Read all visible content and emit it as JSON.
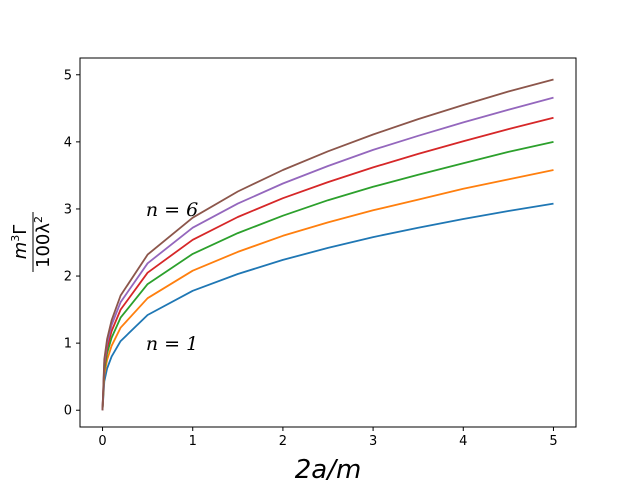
{
  "chart_data": {
    "type": "line",
    "xlabel": "2a/m",
    "ylabel": {
      "numerator_base": "m",
      "numerator_sup": "3",
      "numerator_rest": "Γ",
      "denominator_base": "100λ",
      "denominator_sup": "2"
    },
    "xlim": [
      -0.25,
      5.25
    ],
    "ylim": [
      -0.25,
      5.25
    ],
    "x_ticks": [
      0,
      1,
      2,
      3,
      4,
      5
    ],
    "y_ticks": [
      0,
      1,
      2,
      3,
      4,
      5
    ],
    "grid": false,
    "legend": "none",
    "annotations": [
      {
        "text": "n = 6",
        "x": 0.48,
        "y": 3.0
      },
      {
        "text": "n = 1",
        "x": 0.48,
        "y": 1.0
      }
    ],
    "series": [
      {
        "color": "#1f77b4",
        "x": [
          0,
          0.02,
          0.05,
          0.1,
          0.2,
          0.5,
          1,
          1.5,
          2,
          2.5,
          3,
          3.5,
          4,
          4.5,
          5
        ],
        "y": [
          0,
          0.43,
          0.62,
          0.8,
          1.03,
          1.42,
          1.78,
          2.03,
          2.24,
          2.42,
          2.58,
          2.72,
          2.85,
          2.97,
          3.08
        ]
      },
      {
        "color": "#ff7f0e",
        "x": [
          0,
          0.02,
          0.05,
          0.1,
          0.2,
          0.5,
          1,
          1.5,
          2,
          2.5,
          3,
          3.5,
          4,
          4.5,
          5
        ],
        "y": [
          0,
          0.53,
          0.75,
          0.96,
          1.23,
          1.67,
          2.08,
          2.36,
          2.6,
          2.8,
          2.98,
          3.14,
          3.3,
          3.44,
          3.58
        ]
      },
      {
        "color": "#2ca02c",
        "x": [
          0,
          0.02,
          0.05,
          0.1,
          0.2,
          0.5,
          1,
          1.5,
          2,
          2.5,
          3,
          3.5,
          4,
          4.5,
          5
        ],
        "y": [
          0,
          0.6,
          0.85,
          1.08,
          1.38,
          1.88,
          2.33,
          2.64,
          2.9,
          3.13,
          3.33,
          3.51,
          3.68,
          3.85,
          4.0
        ]
      },
      {
        "color": "#d62728",
        "x": [
          0,
          0.02,
          0.05,
          0.1,
          0.2,
          0.5,
          1,
          1.5,
          2,
          2.5,
          3,
          3.5,
          4,
          4.5,
          5
        ],
        "y": [
          0,
          0.66,
          0.93,
          1.18,
          1.5,
          2.05,
          2.54,
          2.88,
          3.16,
          3.4,
          3.62,
          3.82,
          4.01,
          4.19,
          4.36
        ]
      },
      {
        "color": "#9467bd",
        "x": [
          0,
          0.02,
          0.05,
          0.1,
          0.2,
          0.5,
          1,
          1.5,
          2,
          2.5,
          3,
          3.5,
          4,
          4.5,
          5
        ],
        "y": [
          0,
          0.71,
          1.0,
          1.27,
          1.61,
          2.19,
          2.72,
          3.08,
          3.38,
          3.64,
          3.88,
          4.09,
          4.29,
          4.48,
          4.66
        ]
      },
      {
        "color": "#8c564b",
        "x": [
          0,
          0.02,
          0.05,
          0.1,
          0.2,
          0.5,
          1,
          1.5,
          2,
          2.5,
          3,
          3.5,
          4,
          4.5,
          5
        ],
        "y": [
          0,
          0.76,
          1.06,
          1.34,
          1.71,
          2.32,
          2.87,
          3.26,
          3.58,
          3.86,
          4.11,
          4.34,
          4.55,
          4.75,
          4.93
        ]
      }
    ]
  }
}
